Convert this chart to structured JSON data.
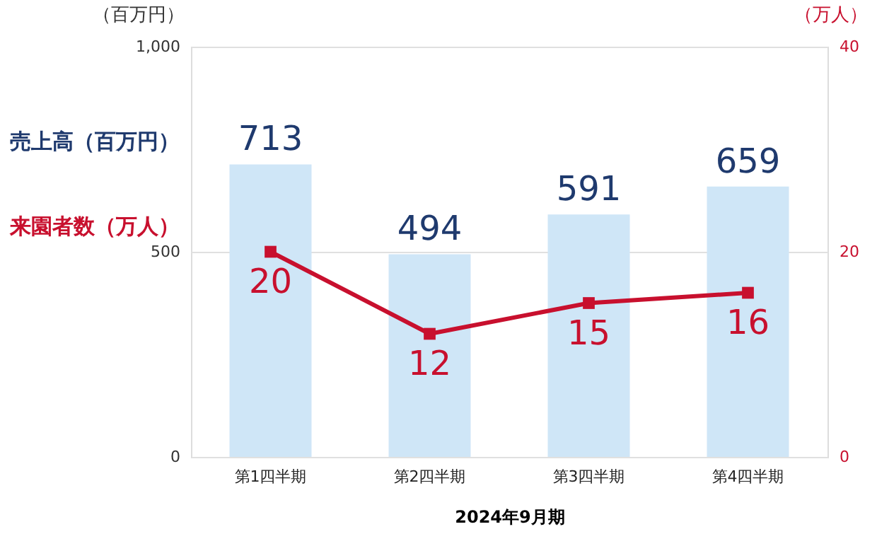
{
  "chart_data": {
    "type": "bar",
    "categories": [
      "第1四半期",
      "第2四半期",
      "第3四半期",
      "第4四半期"
    ],
    "xlabel": "2024年9月期",
    "ylabel": "（百万円）",
    "y2label": "（万人）",
    "series": [
      {
        "name": "売上高（百万円）",
        "color": "#cfe6f7",
        "values": [
          713,
          494,
          591,
          659
        ]
      },
      {
        "name": "来園者数（万人）",
        "type": "line",
        "axis": "y2",
        "color": "#c8102e",
        "values": [
          20,
          12,
          15,
          16
        ]
      }
    ],
    "ylim": [
      0,
      1000
    ],
    "yticks": [
      0,
      500,
      {
        "value": 1000,
        "label": "1,000"
      }
    ],
    "y2lim": [
      0,
      40
    ],
    "y2ticks": [
      0,
      20,
      40
    ],
    "grid": "y",
    "legend": "left",
    "marker": "square",
    "line_style": "solid",
    "data_labels": true
  }
}
